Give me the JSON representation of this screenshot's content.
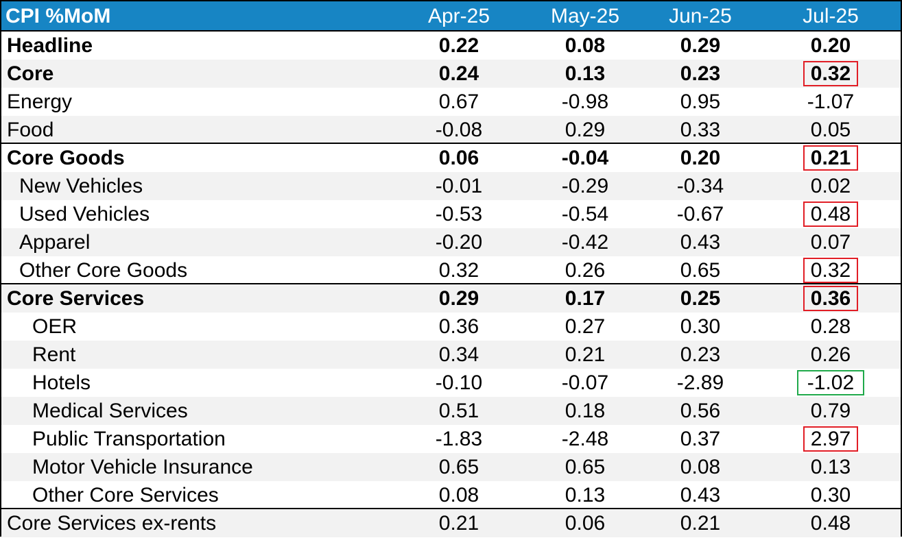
{
  "table": {
    "title": "CPI %MoM",
    "columns": [
      "Apr-25",
      "May-25",
      "Jun-25",
      "Jul-25"
    ],
    "rows": [
      {
        "label": "Headline",
        "values": [
          "0.22",
          "0.08",
          "0.29",
          "0.20"
        ],
        "bold": true,
        "indent": 0
      },
      {
        "label": "Core",
        "values": [
          "0.24",
          "0.13",
          "0.23",
          "0.32"
        ],
        "bold": true,
        "indent": 0,
        "highlight": "red"
      },
      {
        "label": "Energy",
        "values": [
          "0.67",
          "-0.98",
          "0.95",
          "-1.07"
        ],
        "bold": false,
        "indent": 0
      },
      {
        "label": "Food",
        "values": [
          "-0.08",
          "0.29",
          "0.33",
          "0.05"
        ],
        "bold": false,
        "indent": 0
      },
      {
        "label": "Core Goods",
        "values": [
          "0.06",
          "-0.04",
          "0.20",
          "0.21"
        ],
        "bold": true,
        "indent": 0,
        "highlight": "red"
      },
      {
        "label": "New Vehicles",
        "values": [
          "-0.01",
          "-0.29",
          "-0.34",
          "0.02"
        ],
        "bold": false,
        "indent": 1
      },
      {
        "label": "Used Vehicles",
        "values": [
          "-0.53",
          "-0.54",
          "-0.67",
          "0.48"
        ],
        "bold": false,
        "indent": 1,
        "highlight": "red"
      },
      {
        "label": "Apparel",
        "values": [
          "-0.20",
          "-0.42",
          "0.43",
          "0.07"
        ],
        "bold": false,
        "indent": 1
      },
      {
        "label": "Other Core Goods",
        "values": [
          "0.32",
          "0.26",
          "0.65",
          "0.32"
        ],
        "bold": false,
        "indent": 1,
        "highlight": "red"
      },
      {
        "label": "Core Services",
        "values": [
          "0.29",
          "0.17",
          "0.25",
          "0.36"
        ],
        "bold": true,
        "indent": 0,
        "highlight": "red"
      },
      {
        "label": "OER",
        "values": [
          "0.36",
          "0.27",
          "0.30",
          "0.28"
        ],
        "bold": false,
        "indent": 2
      },
      {
        "label": "Rent",
        "values": [
          "0.34",
          "0.21",
          "0.23",
          "0.26"
        ],
        "bold": false,
        "indent": 2
      },
      {
        "label": "Hotels",
        "values": [
          "-0.10",
          "-0.07",
          "-2.89",
          "-1.02"
        ],
        "bold": false,
        "indent": 2,
        "highlight": "green"
      },
      {
        "label": "Medical Services",
        "values": [
          "0.51",
          "0.18",
          "0.56",
          "0.79"
        ],
        "bold": false,
        "indent": 2
      },
      {
        "label": "Public Transportation",
        "values": [
          "-1.83",
          "-2.48",
          "0.37",
          "2.97"
        ],
        "bold": false,
        "indent": 2,
        "highlight": "red"
      },
      {
        "label": "Motor Vehicle Insurance",
        "values": [
          "0.65",
          "0.65",
          "0.08",
          "0.13"
        ],
        "bold": false,
        "indent": 2
      },
      {
        "label": "Other Core Services",
        "values": [
          "0.08",
          "0.13",
          "0.43",
          "0.30"
        ],
        "bold": false,
        "indent": 2
      },
      {
        "label": "Core Services ex-rents",
        "values": [
          "0.21",
          "0.06",
          "0.21",
          "0.48"
        ],
        "bold": false,
        "indent": 0
      }
    ]
  },
  "chart_data": {
    "type": "table",
    "title": "CPI %MoM",
    "columns": [
      "Apr-25",
      "May-25",
      "Jun-25",
      "Jul-25"
    ],
    "series": [
      {
        "name": "Headline",
        "values": [
          0.22,
          0.08,
          0.29,
          0.2
        ]
      },
      {
        "name": "Core",
        "values": [
          0.24,
          0.13,
          0.23,
          0.32
        ]
      },
      {
        "name": "Energy",
        "values": [
          0.67,
          -0.98,
          0.95,
          -1.07
        ]
      },
      {
        "name": "Food",
        "values": [
          -0.08,
          0.29,
          0.33,
          0.05
        ]
      },
      {
        "name": "Core Goods",
        "values": [
          0.06,
          -0.04,
          0.2,
          0.21
        ]
      },
      {
        "name": "New Vehicles",
        "values": [
          -0.01,
          -0.29,
          -0.34,
          0.02
        ]
      },
      {
        "name": "Used Vehicles",
        "values": [
          -0.53,
          -0.54,
          -0.67,
          0.48
        ]
      },
      {
        "name": "Apparel",
        "values": [
          -0.2,
          -0.42,
          0.43,
          0.07
        ]
      },
      {
        "name": "Other Core Goods",
        "values": [
          0.32,
          0.26,
          0.65,
          0.32
        ]
      },
      {
        "name": "Core Services",
        "values": [
          0.29,
          0.17,
          0.25,
          0.36
        ]
      },
      {
        "name": "OER",
        "values": [
          0.36,
          0.27,
          0.3,
          0.28
        ]
      },
      {
        "name": "Rent",
        "values": [
          0.34,
          0.21,
          0.23,
          0.26
        ]
      },
      {
        "name": "Hotels",
        "values": [
          -0.1,
          -0.07,
          -2.89,
          -1.02
        ]
      },
      {
        "name": "Medical Services",
        "values": [
          0.51,
          0.18,
          0.56,
          0.79
        ]
      },
      {
        "name": "Public Transportation",
        "values": [
          -1.83,
          -2.48,
          0.37,
          2.97
        ]
      },
      {
        "name": "Motor Vehicle Insurance",
        "values": [
          0.65,
          0.65,
          0.08,
          0.13
        ]
      },
      {
        "name": "Other Core Services",
        "values": [
          0.08,
          0.13,
          0.43,
          0.3
        ]
      },
      {
        "name": "Core Services ex-rents",
        "values": [
          0.21,
          0.06,
          0.21,
          0.48
        ]
      }
    ]
  },
  "colors": {
    "header_bg": "#1785c4",
    "header_text": "#ffffff",
    "row_shade": "#f2f2f2",
    "highlight_red": "#e11d25",
    "highlight_green": "#1fa94a"
  }
}
